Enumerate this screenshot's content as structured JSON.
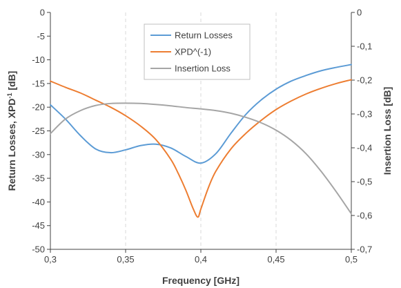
{
  "chart_data": {
    "type": "line",
    "title": "",
    "xlabel": "Frequency [GHz]",
    "ylabel_left": {
      "prefix": "Return Losses, XPD",
      "superscript": "-1",
      "suffix": " [dB]"
    },
    "ylabel_right": "Insertion Loss [dB]",
    "xlim": [
      0.3,
      0.5
    ],
    "ylim_left": [
      -50,
      0
    ],
    "ylim_right": [
      -0.7,
      0
    ],
    "x_ticks": [
      {
        "value": 0.3,
        "label": "0,3"
      },
      {
        "value": 0.35,
        "label": "0,35"
      },
      {
        "value": 0.4,
        "label": "0,4"
      },
      {
        "value": 0.45,
        "label": "0,45"
      },
      {
        "value": 0.5,
        "label": "0,5"
      }
    ],
    "y_left_ticks": [
      {
        "value": 0,
        "label": "0"
      },
      {
        "value": -5,
        "label": "-5"
      },
      {
        "value": -10,
        "label": "-10"
      },
      {
        "value": -15,
        "label": "-15"
      },
      {
        "value": -20,
        "label": "-20"
      },
      {
        "value": -25,
        "label": "-25"
      },
      {
        "value": -30,
        "label": "-30"
      },
      {
        "value": -35,
        "label": "-35"
      },
      {
        "value": -40,
        "label": "-40"
      },
      {
        "value": -45,
        "label": "-45"
      },
      {
        "value": -50,
        "label": "-50"
      }
    ],
    "y_right_ticks": [
      {
        "value": 0,
        "label": "0"
      },
      {
        "value": -0.1,
        "label": "-0,1"
      },
      {
        "value": -0.2,
        "label": "-0,2"
      },
      {
        "value": -0.3,
        "label": "-0,3"
      },
      {
        "value": -0.4,
        "label": "-0,4"
      },
      {
        "value": -0.5,
        "label": "-0,5"
      },
      {
        "value": -0.6,
        "label": "-0,6"
      },
      {
        "value": -0.7,
        "label": "-0,7"
      }
    ],
    "grid": "vertical dashed",
    "legend_position": "top-center",
    "series": [
      {
        "name": "Return Losses",
        "axis": "left",
        "color": "#5B9BD5",
        "x": [
          0.3,
          0.31,
          0.32,
          0.33,
          0.34,
          0.35,
          0.36,
          0.37,
          0.38,
          0.39,
          0.4,
          0.41,
          0.42,
          0.43,
          0.44,
          0.45,
          0.46,
          0.47,
          0.48,
          0.49,
          0.5
        ],
        "y": [
          -19.5,
          -22.5,
          -26.0,
          -28.8,
          -29.6,
          -29.0,
          -28.1,
          -27.8,
          -28.6,
          -30.4,
          -31.8,
          -29.8,
          -25.5,
          -21.5,
          -18.5,
          -16.2,
          -14.5,
          -13.3,
          -12.3,
          -11.6,
          -11.0
        ]
      },
      {
        "name": "XPD^(-1)",
        "axis": "left",
        "color": "#ED7D31",
        "x": [
          0.3,
          0.31,
          0.32,
          0.33,
          0.34,
          0.35,
          0.36,
          0.37,
          0.38,
          0.385,
          0.39,
          0.395,
          0.398,
          0.4,
          0.405,
          0.41,
          0.42,
          0.43,
          0.44,
          0.45,
          0.46,
          0.47,
          0.48,
          0.49,
          0.5
        ],
        "y": [
          -14.5,
          -15.8,
          -17.0,
          -18.5,
          -20.0,
          -21.8,
          -24.0,
          -26.8,
          -31.0,
          -34.0,
          -37.5,
          -41.5,
          -43.2,
          -41.5,
          -37.0,
          -33.5,
          -28.8,
          -25.5,
          -22.8,
          -20.5,
          -18.7,
          -17.2,
          -16.0,
          -15.0,
          -14.2
        ]
      },
      {
        "name": "Insertion Loss",
        "axis": "right",
        "color": "#A5A5A5",
        "x": [
          0.3,
          0.31,
          0.32,
          0.33,
          0.34,
          0.35,
          0.36,
          0.37,
          0.38,
          0.39,
          0.4,
          0.41,
          0.42,
          0.43,
          0.44,
          0.45,
          0.46,
          0.47,
          0.48,
          0.49,
          0.5
        ],
        "y": [
          -0.358,
          -0.315,
          -0.29,
          -0.275,
          -0.269,
          -0.268,
          -0.269,
          -0.272,
          -0.276,
          -0.281,
          -0.285,
          -0.29,
          -0.298,
          -0.31,
          -0.326,
          -0.348,
          -0.378,
          -0.418,
          -0.47,
          -0.53,
          -0.595
        ]
      }
    ]
  }
}
